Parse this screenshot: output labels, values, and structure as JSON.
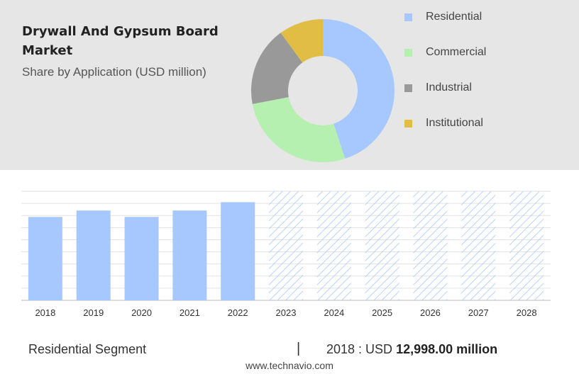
{
  "header": {
    "title": "Drywall And Gypsum Board Market",
    "subtitle": "Share by Application (USD million)"
  },
  "legend": [
    {
      "label": "Residential",
      "color": "#a6c8ff"
    },
    {
      "label": "Commercial",
      "color": "#b6f0b0"
    },
    {
      "label": "Industrial",
      "color": "#999999"
    },
    {
      "label": "Institutional",
      "color": "#e2bd45"
    }
  ],
  "chart_data": [
    {
      "type": "pie",
      "style": "donut",
      "categories": [
        "Residential",
        "Commercial",
        "Industrial",
        "Institutional"
      ],
      "values": [
        45,
        27,
        18,
        10
      ],
      "colors": [
        "#a6c8ff",
        "#b6f0b0",
        "#999999",
        "#e2bd45"
      ],
      "legend_position": "right"
    },
    {
      "type": "bar",
      "categories": [
        "2018",
        "2019",
        "2020",
        "2021",
        "2022",
        "2023",
        "2024",
        "2025",
        "2026",
        "2027",
        "2028"
      ],
      "values": [
        12998,
        14000,
        13000,
        14000,
        15300,
        null,
        null,
        null,
        null,
        null,
        null
      ],
      "forecast_categories": [
        "2023",
        "2024",
        "2025",
        "2026",
        "2027",
        "2028"
      ],
      "ylim": [
        0,
        17000
      ],
      "grid": true,
      "bar_color": "#a6c8ff",
      "forecast_color": "#a6c8ff"
    }
  ],
  "footer": {
    "segment": "Residential Segment",
    "separator": "|",
    "year_prefix": "2018 : USD",
    "value": "12,998.00 million"
  },
  "watermark": "www.technavio.com"
}
